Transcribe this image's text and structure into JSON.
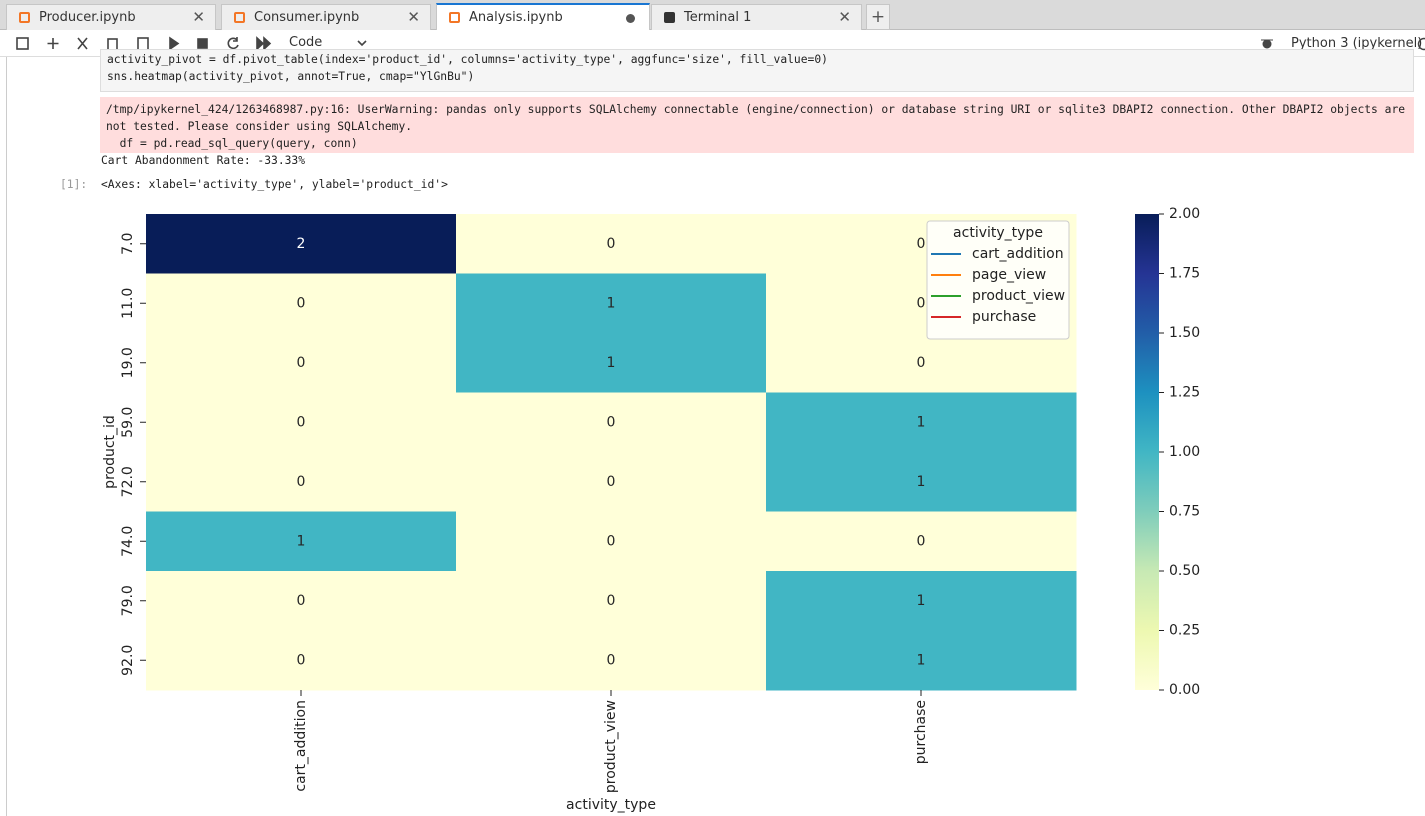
{
  "tabs": [
    {
      "label": "Producer.ipynb"
    },
    {
      "label": "Consumer.ipynb"
    },
    {
      "label": "Analysis.ipynb"
    },
    {
      "label": "Terminal 1"
    }
  ],
  "toolbar": {
    "cell_type": "Code",
    "kernel": "Python 3 (ipykernel)"
  },
  "cell": {
    "code": [
      "activity_pivot = df.pivot_table(index='product_id', columns='activity_type', aggfunc='size', fill_value=0)",
      "sns.heatmap(activity_pivot, annot=True, cmap=\"YlGnBu\")"
    ],
    "stderr": "/tmp/ipykernel_424/1263468987.py:16: UserWarning: pandas only supports SQLAlchemy connectable (engine/connection) or database string URI or sqlite3 DBAPI2 connection. Other DBAPI2 objects are not tested. Please consider using SQLAlchemy.",
    "stderr_source": "  df = pd.read_sql_query(query, conn)",
    "stdout": "Cart Abandonment Rate: -33.33%",
    "prompt": "[1]:",
    "result": "<Axes: xlabel='activity_type', ylabel='product_id'>"
  },
  "chart_data": {
    "type": "heatmap",
    "x": [
      "cart_addition",
      "product_view",
      "purchase"
    ],
    "y": [
      "7.0",
      "11.0",
      "19.0",
      "59.0",
      "72.0",
      "74.0",
      "79.0",
      "92.0"
    ],
    "values": [
      [
        2,
        0,
        0
      ],
      [
        0,
        1,
        0
      ],
      [
        0,
        1,
        0
      ],
      [
        0,
        0,
        1
      ],
      [
        0,
        0,
        1
      ],
      [
        1,
        0,
        0
      ],
      [
        0,
        0,
        1
      ],
      [
        0,
        0,
        1
      ]
    ],
    "xlabel": "activity_type",
    "ylabel": "product_id",
    "colormap": [
      "#ffffd9",
      "#edf8b1",
      "#c7e9b4",
      "#7fcdbb",
      "#41b6c4",
      "#1d91c0",
      "#225ea8",
      "#253494",
      "#081d58"
    ],
    "clim": [
      0,
      2
    ],
    "cticks": [
      {
        "value": 0,
        "label": "0.00"
      },
      {
        "value": 0.25,
        "label": "0.25"
      },
      {
        "value": 0.5,
        "label": "0.50"
      },
      {
        "value": 0.75,
        "label": "0.75"
      },
      {
        "value": 1,
        "label": "1.00"
      },
      {
        "value": 1.25,
        "label": "1.25"
      },
      {
        "value": 1.5,
        "label": "1.50"
      },
      {
        "value": 1.75,
        "label": "1.75"
      },
      {
        "value": 2,
        "label": "2.00"
      }
    ],
    "legend": {
      "title": "activity_type",
      "loc": "upper right",
      "entries": [
        {
          "name": "cart_addition",
          "color": "#1f77b4"
        },
        {
          "name": "page_view",
          "color": "#ff7f0e"
        },
        {
          "name": "product_view",
          "color": "#2ca02c"
        },
        {
          "name": "purchase",
          "color": "#d62728"
        }
      ]
    }
  }
}
